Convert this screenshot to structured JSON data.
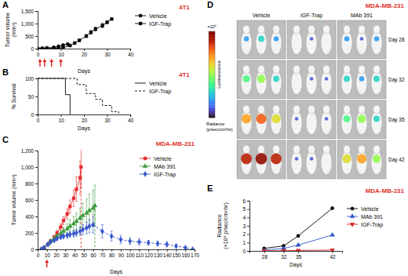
{
  "chart_data": [
    {
      "type": "line",
      "panel": "A",
      "title": "4T1",
      "x_label": "Days",
      "y_label": "Tumor volume (mm³)",
      "xlim": [
        0,
        40
      ],
      "xticks": [
        0,
        10,
        20,
        30,
        40
      ],
      "ylim": [
        0,
        1500
      ],
      "yticks": [
        0,
        500,
        {
          "value": 1000,
          "label": "1,000"
        },
        {
          "value": 1500,
          "label": "1,500"
        }
      ],
      "legend": "right",
      "treatment_days": [
        1,
        3,
        6,
        10
      ],
      "series": [
        {
          "name": "Vehicle",
          "color": "#000000",
          "marker": "circle",
          "line_style": "solid",
          "x": [
            0,
            2,
            4,
            7,
            9,
            11,
            13
          ],
          "values": [
            0,
            10,
            25,
            50,
            90,
            140,
            180
          ],
          "errors": [
            0,
            3,
            5,
            10,
            15,
            25,
            30
          ]
        },
        {
          "name": "IGF-Trap",
          "color": "#000000",
          "marker": "square",
          "line_style": "solid",
          "x": [
            0,
            2,
            4,
            7,
            9,
            11,
            14,
            16,
            18,
            21,
            23,
            25,
            28,
            30,
            32
          ],
          "values": [
            0,
            5,
            8,
            12,
            20,
            40,
            120,
            220,
            330,
            500,
            650,
            780,
            920,
            1050,
            1180
          ],
          "errors": [
            0,
            2,
            3,
            4,
            6,
            10,
            25,
            35,
            45,
            60,
            70,
            80,
            90,
            60,
            0
          ]
        }
      ]
    },
    {
      "type": "step",
      "panel": "B",
      "title": "4T1",
      "x_label": "Days",
      "y_label": "% Survival",
      "xlim": [
        0,
        40
      ],
      "xticks": [
        0,
        10,
        20,
        30,
        40
      ],
      "ylim": [
        0,
        100
      ],
      "yticks": [
        0,
        50,
        100
      ],
      "legend": "right",
      "series": [
        {
          "name": "Vehicle",
          "color": "#000000",
          "line_style": "solid",
          "x": [
            0,
            12,
            14
          ],
          "values": [
            100,
            55,
            0
          ]
        },
        {
          "name": "IGF-Trap",
          "color": "#000000",
          "line_style": "dashed",
          "x": [
            0,
            17,
            21,
            25,
            28,
            32,
            35
          ],
          "values": [
            100,
            83,
            58,
            42,
            25,
            8,
            0
          ]
        }
      ]
    },
    {
      "type": "line",
      "panel": "C",
      "title": "MDA-MB-231",
      "x_label": "Days",
      "y_label": "Tumor volume (mm³)",
      "xlim": [
        0,
        170
      ],
      "xticks": [
        0,
        10,
        20,
        30,
        40,
        50,
        60,
        70,
        80,
        90,
        100,
        110,
        120,
        130,
        140,
        150,
        160,
        170
      ],
      "ylim": [
        0,
        1200
      ],
      "yticks": [
        0,
        200,
        400,
        600,
        800,
        {
          "value": 1000,
          "label": "1,000"
        },
        {
          "value": 1200,
          "label": "1,200"
        }
      ],
      "legend": "upper right",
      "treatment_days": [
        10
      ],
      "series": [
        {
          "name": "Vehicle",
          "color": "#e8262a",
          "marker": "square",
          "line_style": "solid",
          "x": [
            4,
            7,
            11,
            14,
            18,
            21,
            25,
            28,
            32,
            35,
            39,
            42,
            46,
            47
          ],
          "values": [
            0,
            20,
            60,
            100,
            150,
            200,
            270,
            350,
            430,
            520,
            620,
            730,
            870,
            1000
          ],
          "errors": [
            0,
            5,
            10,
            15,
            20,
            30,
            40,
            50,
            60,
            80,
            100,
            150,
            200,
            250
          ]
        },
        {
          "name": "MAb 391",
          "color": "#3a9a3a",
          "marker": "triangle",
          "line_style": "solid",
          "x": [
            4,
            7,
            11,
            14,
            18,
            21,
            25,
            28,
            32,
            35,
            39,
            42,
            46,
            49,
            53,
            56,
            60,
            62
          ],
          "values": [
            0,
            20,
            60,
            100,
            130,
            160,
            190,
            220,
            250,
            280,
            310,
            340,
            380,
            410,
            440,
            470,
            500,
            530
          ],
          "errors": [
            0,
            5,
            10,
            15,
            20,
            30,
            40,
            50,
            60,
            80,
            90,
            100,
            120,
            150,
            170,
            200,
            220,
            250
          ]
        },
        {
          "name": "IGF-Trap",
          "color": "#3355cc",
          "marker": "diamond",
          "line_style": "solid",
          "dashed_from": 60,
          "x": [
            4,
            7,
            11,
            14,
            18,
            21,
            25,
            28,
            32,
            35,
            39,
            42,
            46,
            49,
            53,
            56,
            60,
            70,
            80,
            90,
            100,
            110,
            120,
            130,
            140,
            150,
            160,
            168
          ],
          "values": [
            0,
            20,
            60,
            90,
            110,
            130,
            150,
            160,
            170,
            180,
            190,
            200,
            220,
            240,
            260,
            280,
            300,
            220,
            160,
            120,
            100,
            90,
            80,
            70,
            60,
            40,
            20,
            0
          ],
          "errors": [
            0,
            5,
            10,
            15,
            20,
            20,
            25,
            30,
            30,
            35,
            40,
            40,
            50,
            60,
            70,
            80,
            100,
            80,
            60,
            50,
            40,
            40,
            30,
            30,
            30,
            20,
            10,
            0
          ]
        }
      ]
    },
    {
      "type": "image",
      "panel": "D",
      "title": "MDA-MB-231",
      "columns": [
        "Vehicle",
        "IGF-Trap",
        "MAb 391"
      ],
      "rows": [
        "Day 28",
        "Day 32",
        "Day 35",
        "Day 42"
      ],
      "signal": [
        [
          [
            2,
            3,
            2
          ],
          [
            0,
            1,
            0
          ],
          [
            2,
            1,
            2
          ]
        ],
        [
          [
            4,
            5,
            3
          ],
          [
            0,
            1,
            1
          ],
          [
            3,
            2,
            3
          ]
        ],
        [
          [
            7,
            8,
            6
          ],
          [
            1,
            0,
            1
          ],
          [
            4,
            5,
            3
          ]
        ],
        [
          [
            9,
            10,
            9
          ],
          [
            1,
            1,
            0
          ],
          [
            6,
            7,
            5
          ]
        ]
      ],
      "colorbar": {
        "label": "Luminescence",
        "unit": "×10⁶",
        "title": "Radiance (p/sec/cm²/sr)",
        "range": [
          0,
          10
        ]
      }
    },
    {
      "type": "line",
      "panel": "E",
      "title": "MDA-MB-231",
      "x_label": "Days",
      "y_label": "Radiance (×10⁸ p/sec/cm²/sr)",
      "x": [
        28,
        32,
        35,
        42
      ],
      "xlim": [
        25,
        44
      ],
      "xticks": [
        28,
        32,
        35,
        42
      ],
      "ylim": [
        0,
        6
      ],
      "yticks": [
        0,
        1,
        2,
        3,
        4,
        5,
        6
      ],
      "legend": "right",
      "series": [
        {
          "name": "Vehicle",
          "color": "#000000",
          "marker": "circle",
          "line_style": "solid",
          "values": [
            0.3,
            0.6,
            1.8,
            5.1
          ]
        },
        {
          "name": "MAb 391",
          "color": "#2a55c8",
          "marker": "triangle",
          "line_style": "solid",
          "values": [
            0.1,
            0.3,
            0.7,
            1.9
          ]
        },
        {
          "name": "IGF-Trap",
          "color": "#d62728",
          "marker": "triangle-down",
          "line_style": "solid",
          "values": [
            0.02,
            0.03,
            0.05,
            0.1
          ]
        }
      ]
    }
  ]
}
